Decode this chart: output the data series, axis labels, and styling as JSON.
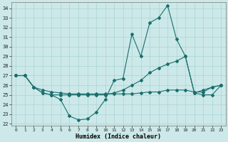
{
  "xlabel": "Humidex (Indice chaleur)",
  "bg_color": "#cce8e8",
  "line_color": "#1a6e6e",
  "grid_color": "#aad4d4",
  "xlim": [
    -0.5,
    23.5
  ],
  "ylim": [
    21.8,
    34.6
  ],
  "yticks": [
    22,
    23,
    24,
    25,
    26,
    27,
    28,
    29,
    30,
    31,
    32,
    33,
    34
  ],
  "xticks": [
    0,
    1,
    2,
    3,
    4,
    5,
    6,
    7,
    8,
    9,
    10,
    11,
    12,
    13,
    14,
    15,
    16,
    17,
    18,
    19,
    20,
    21,
    22,
    23
  ],
  "line1_x": [
    0,
    1,
    2,
    3,
    4,
    5,
    6,
    7,
    8,
    9,
    10,
    11,
    12,
    13,
    14,
    15,
    16,
    17,
    18,
    19,
    20,
    21,
    22,
    23
  ],
  "line1_y": [
    27.0,
    27.0,
    25.8,
    25.2,
    25.0,
    24.5,
    22.8,
    22.4,
    22.5,
    23.2,
    24.5,
    26.5,
    26.7,
    31.3,
    29.0,
    32.5,
    33.0,
    34.3,
    30.8,
    29.0,
    25.2,
    25.0,
    25.0,
    26.0
  ],
  "line2_x": [
    0,
    1,
    2,
    3,
    4,
    5,
    6,
    7,
    8,
    9,
    10,
    11,
    12,
    13,
    14,
    15,
    16,
    17,
    18,
    19,
    20,
    21,
    22,
    23
  ],
  "line2_y": [
    27.0,
    27.0,
    25.8,
    25.2,
    25.0,
    25.0,
    25.0,
    25.0,
    25.0,
    25.0,
    25.0,
    25.2,
    25.5,
    26.0,
    26.5,
    27.3,
    27.8,
    28.2,
    28.5,
    29.0,
    25.2,
    25.5,
    25.8,
    26.0
  ],
  "line3_x": [
    0,
    1,
    2,
    3,
    4,
    5,
    6,
    7,
    8,
    9,
    10,
    11,
    12,
    13,
    14,
    15,
    16,
    17,
    18,
    19,
    20,
    21,
    22,
    23
  ],
  "line3_y": [
    27.0,
    27.0,
    25.8,
    25.5,
    25.3,
    25.2,
    25.1,
    25.1,
    25.1,
    25.1,
    25.1,
    25.1,
    25.1,
    25.1,
    25.2,
    25.3,
    25.3,
    25.5,
    25.5,
    25.5,
    25.3,
    25.3,
    25.8,
    26.0
  ],
  "marker": "D",
  "markersize": 2.0,
  "linewidth": 0.8
}
